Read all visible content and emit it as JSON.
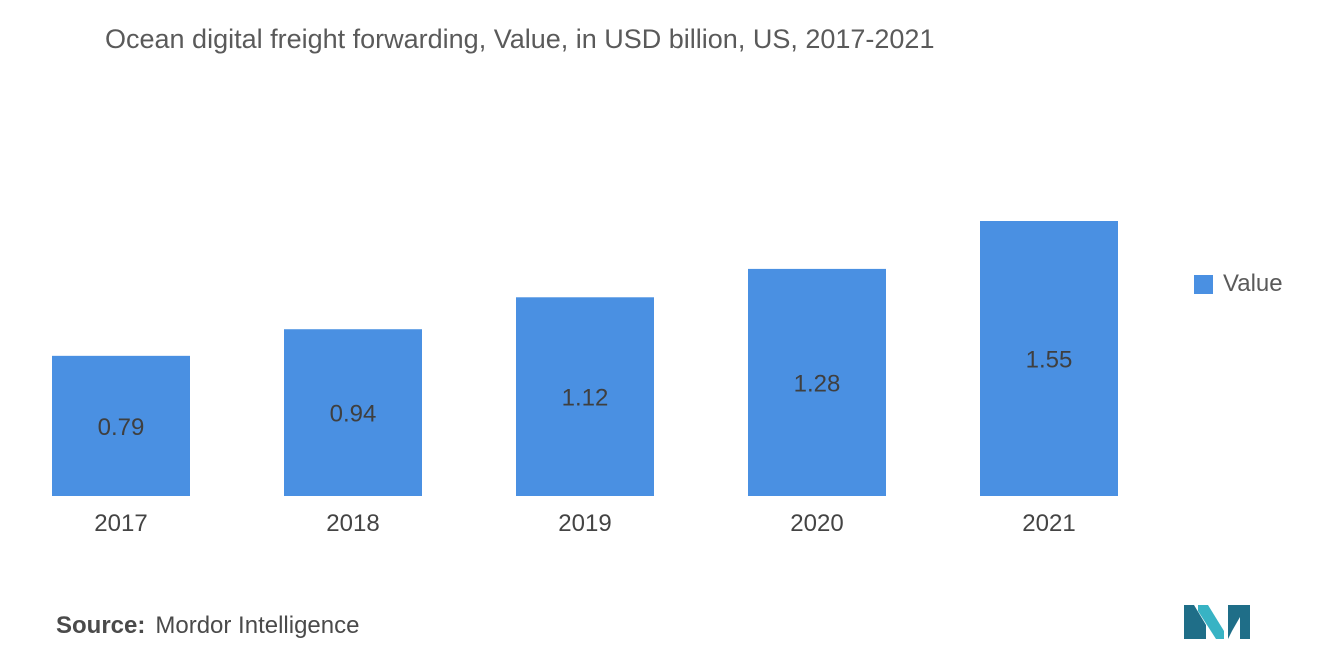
{
  "colors": {
    "bar": "#4a90e2",
    "logo_dark": "#1f6e88",
    "logo_light": "#38b3c4"
  },
  "source": {
    "prefix": "Source:",
    "text": "Mordor Intelligence"
  },
  "logo": {
    "icon": "mordor-intelligence-logo-icon"
  },
  "chart_data": {
    "type": "bar",
    "title": "Ocean digital freight forwarding, Value, in USD billion, US, 2017-2021",
    "xlabel": "",
    "ylabel": "",
    "categories": [
      "2017",
      "2018",
      "2019",
      "2020",
      "2021"
    ],
    "series": [
      {
        "name": "Value",
        "values": [
          0.79,
          0.94,
          1.12,
          1.28,
          1.55
        ],
        "labels": [
          "0.79",
          "0.94",
          "1.12",
          "1.28",
          "1.55"
        ]
      }
    ],
    "ylim": [
      0,
      1.55
    ],
    "grid": false,
    "legend_position": "right"
  }
}
